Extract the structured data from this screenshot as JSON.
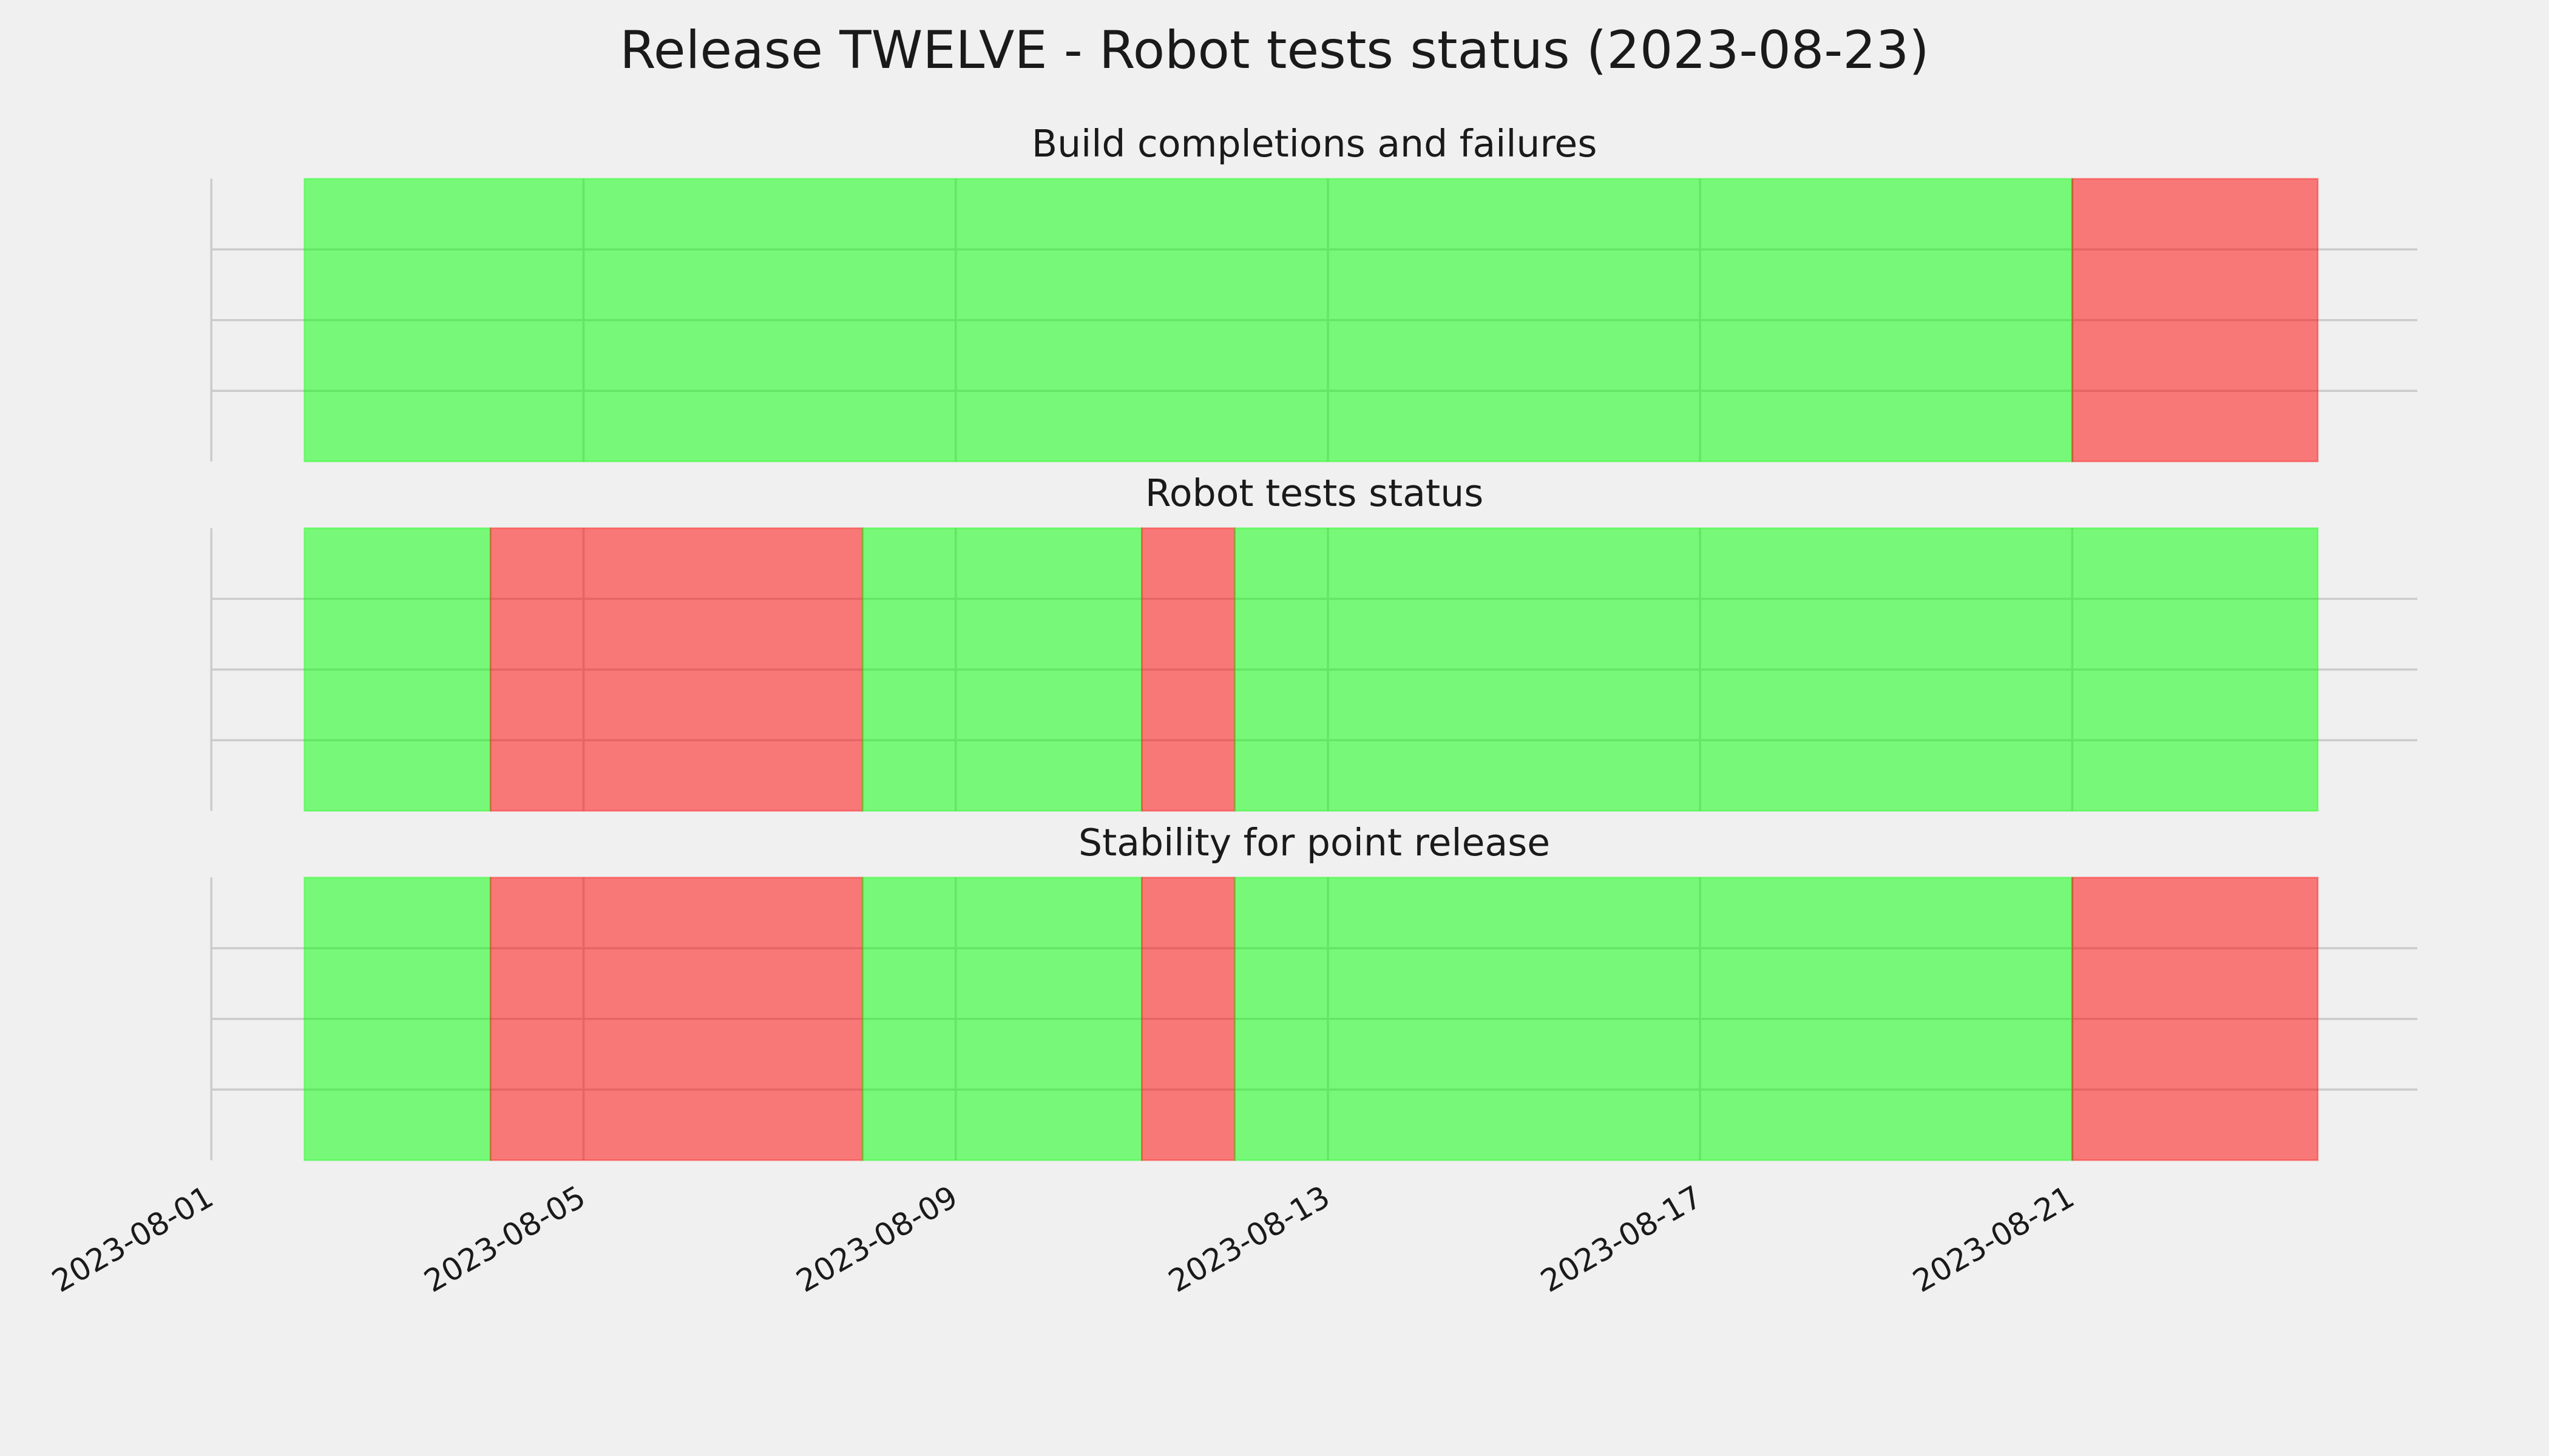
{
  "title": "Release TWELVE - Robot tests status (2023-08-23)",
  "chart_data": [
    {
      "type": "timeline",
      "title": "Build completions and failures",
      "xlim": [
        "2023-08-01",
        "2023-08-24T17:00Z"
      ],
      "xticks": [
        "2023-08-01",
        "2023-08-05",
        "2023-08-09",
        "2023-08-13",
        "2023-08-17",
        "2023-08-21"
      ],
      "ylim": [
        0,
        1
      ],
      "yticks": [
        0.25,
        0.5,
        0.75
      ],
      "ytick_labels": false,
      "xtick_labels": false,
      "grid": true,
      "segments": [
        {
          "start": "2023-08-02",
          "end": "2023-08-21",
          "color": "#00ff00"
        },
        {
          "start": "2023-08-21",
          "end": "2023-08-23T15:20Z",
          "color": "#ff0000"
        }
      ]
    },
    {
      "type": "timeline",
      "title": "Robot tests status",
      "xlim": [
        "2023-08-01",
        "2023-08-24T17:00Z"
      ],
      "xticks": [
        "2023-08-01",
        "2023-08-05",
        "2023-08-09",
        "2023-08-13",
        "2023-08-17",
        "2023-08-21"
      ],
      "ylim": [
        0,
        1
      ],
      "yticks": [
        0.25,
        0.5,
        0.75
      ],
      "ytick_labels": false,
      "xtick_labels": false,
      "grid": true,
      "segments": [
        {
          "start": "2023-08-02",
          "end": "2023-08-04",
          "color": "#00ff00"
        },
        {
          "start": "2023-08-04",
          "end": "2023-08-08",
          "color": "#ff0000"
        },
        {
          "start": "2023-08-08",
          "end": "2023-08-11",
          "color": "#00ff00"
        },
        {
          "start": "2023-08-11",
          "end": "2023-08-12",
          "color": "#ff0000"
        },
        {
          "start": "2023-08-12",
          "end": "2023-08-23T15:20Z",
          "color": "#00ff00"
        }
      ]
    },
    {
      "type": "timeline",
      "title": "Stability for point release",
      "xlim": [
        "2023-08-01",
        "2023-08-24T17:00Z"
      ],
      "xticks": [
        "2023-08-01",
        "2023-08-05",
        "2023-08-09",
        "2023-08-13",
        "2023-08-17",
        "2023-08-21"
      ],
      "ylim": [
        0,
        1
      ],
      "yticks": [
        0.25,
        0.5,
        0.75
      ],
      "ytick_labels": false,
      "xtick_labels": true,
      "grid": true,
      "segments": [
        {
          "start": "2023-08-02",
          "end": "2023-08-04",
          "color": "#00ff00"
        },
        {
          "start": "2023-08-04",
          "end": "2023-08-08",
          "color": "#ff0000"
        },
        {
          "start": "2023-08-08",
          "end": "2023-08-11",
          "color": "#00ff00"
        },
        {
          "start": "2023-08-11",
          "end": "2023-08-12",
          "color": "#ff0000"
        },
        {
          "start": "2023-08-12",
          "end": "2023-08-21",
          "color": "#00ff00"
        },
        {
          "start": "2023-08-21",
          "end": "2023-08-23T15:20Z",
          "color": "#ff0000"
        }
      ]
    }
  ]
}
